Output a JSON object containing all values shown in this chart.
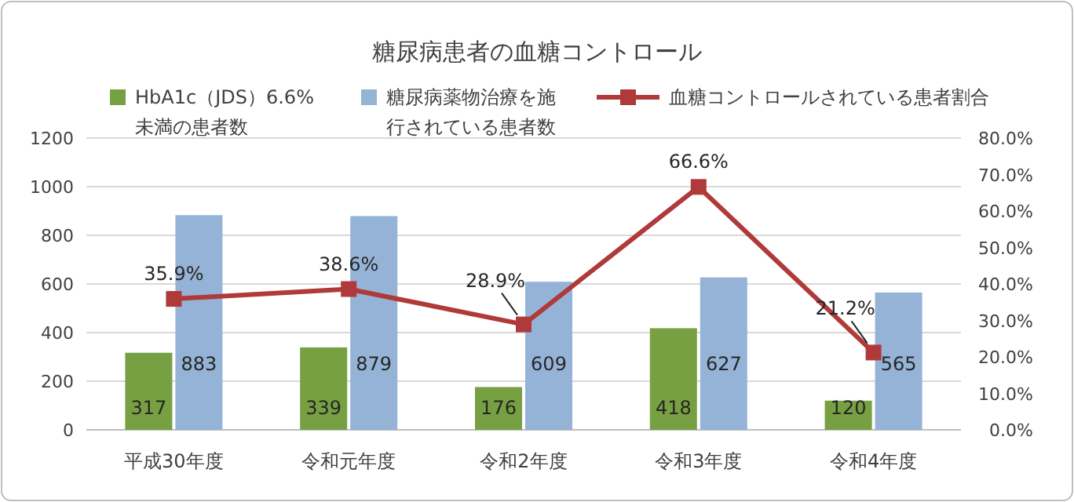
{
  "chart_data": {
    "type": "bar",
    "title": "糖尿病患者の血糖コントロール",
    "categories": [
      "平成30年度",
      "令和元年度",
      "令和2年度",
      "令和3年度",
      "令和4年度"
    ],
    "series": [
      {
        "name": "HbA1c（JDS）6.6%未満の患者数",
        "color": "#77a043",
        "values": [
          317,
          339,
          176,
          418,
          120
        ]
      },
      {
        "name": "糖尿病薬物治療を施行されている患者数",
        "color": "#95b3d7",
        "values": [
          883,
          879,
          609,
          627,
          565
        ]
      },
      {
        "name": "血糖コントロールされている患者割合",
        "type": "line",
        "axis": "y2",
        "color": "#b03a3a",
        "marker": "square",
        "values": [
          35.9,
          38.6,
          28.9,
          66.6,
          21.2
        ],
        "value_labels": [
          "35.9%",
          "38.6%",
          "28.9%",
          "66.6%",
          "21.2%"
        ]
      }
    ],
    "ylim": [
      0,
      1200
    ],
    "yticks": [
      0,
      200,
      400,
      600,
      800,
      1000,
      1200
    ],
    "y2lim": [
      0,
      80
    ],
    "y2ticks": [
      {
        "value": 0,
        "label": "0.0%"
      },
      {
        "value": 10,
        "label": "10.0%"
      },
      {
        "value": 20,
        "label": "20.0%"
      },
      {
        "value": 30,
        "label": "30.0%"
      },
      {
        "value": 40,
        "label": "40.0%"
      },
      {
        "value": 50,
        "label": "50.0%"
      },
      {
        "value": 60,
        "label": "60.0%"
      },
      {
        "value": 70,
        "label": "70.0%"
      },
      {
        "value": 80,
        "label": "80.0%"
      }
    ],
    "grid": "y",
    "legend": "top",
    "data_labels": true
  }
}
